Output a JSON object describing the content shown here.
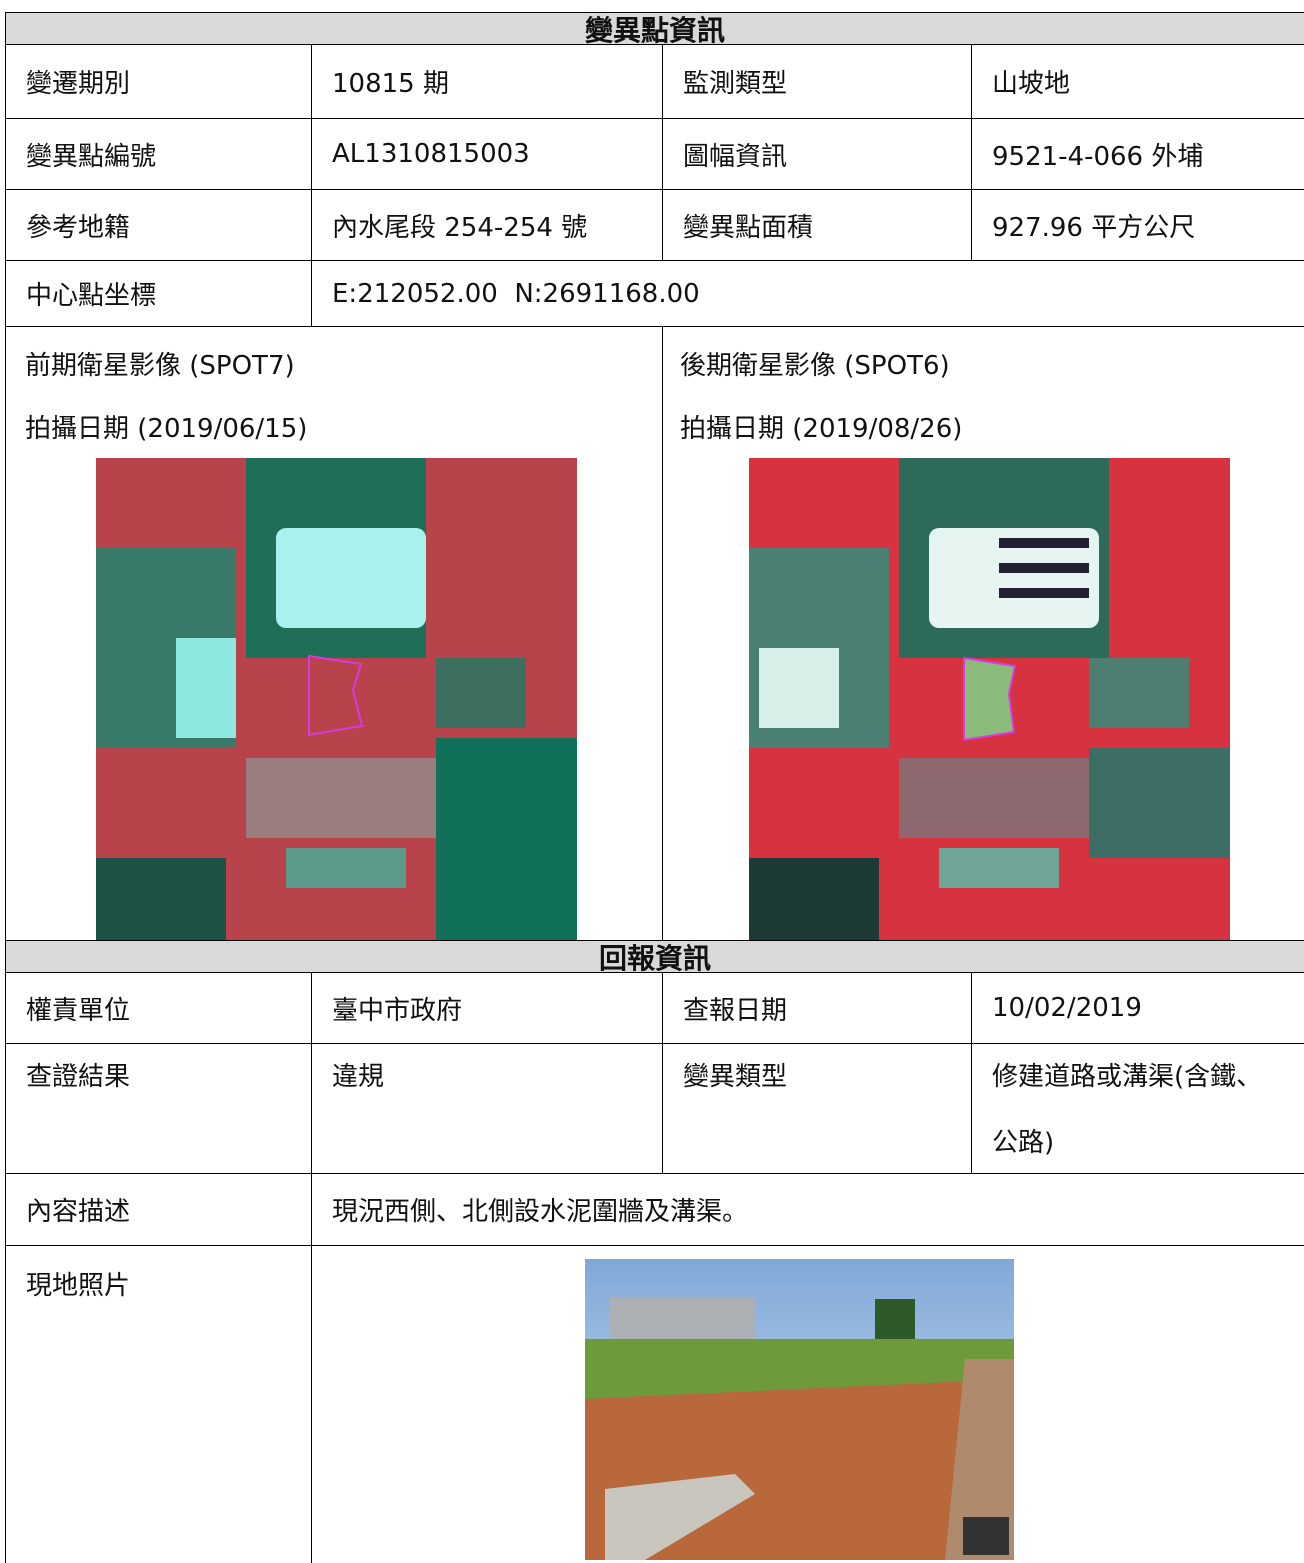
{
  "header": {
    "title": "變異點資訊"
  },
  "info_table": {
    "rows": [
      [
        "變遷期別",
        "10815 期",
        "監測類型",
        "山坡地"
      ],
      [
        "變異點編號",
        "AL1310815003",
        "圖幅資訊",
        "9521-4-066 外埔"
      ],
      [
        "參考地籍",
        "內水尾段 254-254 號",
        "變異點面積",
        "927.96 平方公尺"
      ]
    ],
    "coordinate": {
      "label": "中心點坐標",
      "value": "E:212052.00  N:2691168.00"
    }
  },
  "imagery": {
    "before": {
      "title": "前期衛星影像 (SPOT7)",
      "date": "拍攝日期 (2019/06/15)"
    },
    "after": {
      "title": "後期衛星影像 (SPOT6)",
      "date": "拍攝日期 (2019/08/26)"
    }
  },
  "report": {
    "title": "回報資訊",
    "rows": [
      [
        "權責單位",
        "臺中市政府",
        "查報日期",
        "10/02/2019"
      ],
      [
        "查證結果",
        "違規",
        "變異類型",
        "修建道路或溝渠(含鐵、公路)"
      ]
    ],
    "description": {
      "label": "內容描述",
      "value": "現況西側、北側設水泥圍牆及溝渠。"
    },
    "photo": {
      "label": "現地照片"
    }
  }
}
